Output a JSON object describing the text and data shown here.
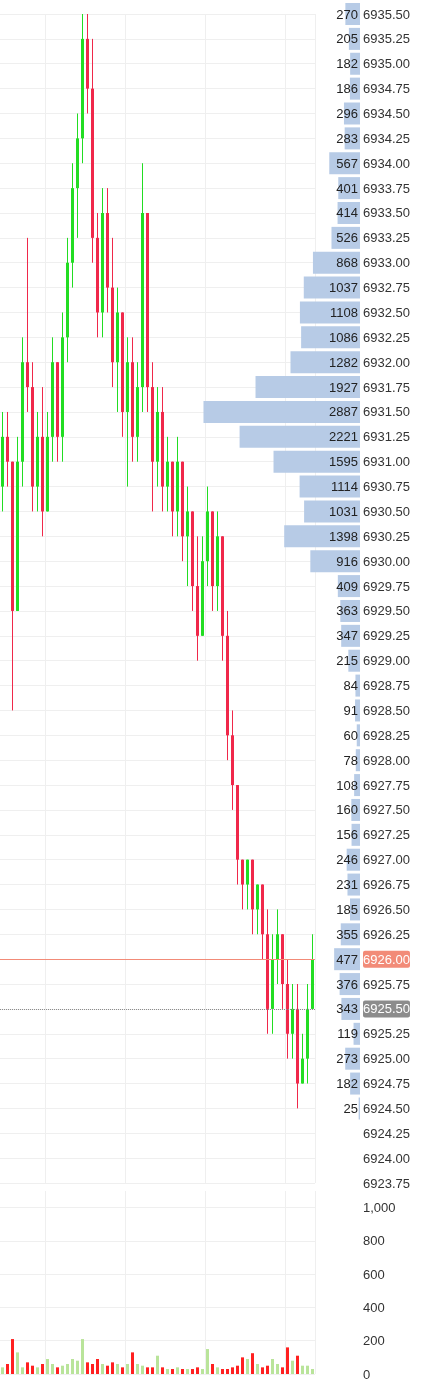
{
  "chart_data": [
    {
      "type": "candlestick",
      "categories": [
        null,
        null,
        null,
        null,
        null,
        null,
        null,
        null,
        null,
        null,
        null,
        null,
        null,
        null,
        null,
        null,
        null,
        null,
        null,
        null,
        null,
        null,
        null,
        null,
        null,
        null,
        null,
        null,
        null,
        null,
        null,
        null,
        null,
        null,
        null,
        null,
        null,
        null,
        null,
        null,
        null,
        null,
        null,
        null,
        null,
        null,
        null,
        null,
        null,
        null,
        null,
        null,
        null,
        null,
        null,
        null,
        null,
        null,
        null,
        null,
        null,
        null,
        null
      ],
      "ohlc": [
        [
          6930.75,
          6931.5,
          6930.5,
          6931.25
        ],
        [
          6931.25,
          6931.5,
          6930.75,
          6931.0
        ],
        [
          6931.0,
          6931.0,
          6928.5,
          6929.5
        ],
        [
          6929.5,
          6931.25,
          6929.5,
          6931.0
        ],
        [
          6931.0,
          6932.25,
          6930.75,
          6932.0
        ],
        [
          6932.0,
          6933.25,
          6931.5,
          6931.75
        ],
        [
          6931.75,
          6932.0,
          6930.5,
          6930.75
        ],
        [
          6930.75,
          6931.5,
          6930.5,
          6931.25
        ],
        [
          6931.25,
          6931.75,
          6930.25,
          6930.5
        ],
        [
          6930.5,
          6931.5,
          6930.5,
          6931.25
        ],
        [
          6931.25,
          6932.25,
          6931.0,
          6932.0
        ],
        [
          6932.0,
          6932.0,
          6931.0,
          6931.25
        ],
        [
          6931.25,
          6932.5,
          6931.0,
          6932.25
        ],
        [
          6932.25,
          6933.25,
          6932.0,
          6933.0
        ],
        [
          6933.0,
          6934.0,
          6932.75,
          6933.75
        ],
        [
          6933.75,
          6934.5,
          6933.25,
          6934.25
        ],
        [
          6934.25,
          6935.5,
          6934.0,
          6935.25
        ],
        [
          6935.25,
          6935.5,
          6934.5,
          6934.75
        ],
        [
          6934.75,
          6935.25,
          6933.0,
          6933.25
        ],
        [
          6933.25,
          6933.5,
          6932.25,
          6932.5
        ],
        [
          6932.5,
          6933.75,
          6932.25,
          6933.5
        ],
        [
          6933.5,
          6933.75,
          6932.5,
          6932.75
        ],
        [
          6932.75,
          6933.25,
          6931.75,
          6932.0
        ],
        [
          6932.0,
          6932.75,
          6931.5,
          6932.5
        ],
        [
          6932.5,
          6932.5,
          6931.25,
          6931.5
        ],
        [
          6931.5,
          6932.25,
          6930.75,
          6932.0
        ],
        [
          6932.0,
          6932.25,
          6931.0,
          6931.25
        ],
        [
          6931.25,
          6932.0,
          6931.0,
          6931.75
        ],
        [
          6931.75,
          6934.0,
          6931.5,
          6933.5
        ],
        [
          6933.5,
          6933.5,
          6931.5,
          6931.75
        ],
        [
          6931.75,
          6932.0,
          6930.5,
          6931.0
        ],
        [
          6931.0,
          6931.75,
          6930.75,
          6931.5
        ],
        [
          6931.5,
          6931.75,
          6930.5,
          6930.75
        ],
        [
          6930.75,
          6931.25,
          6930.5,
          6931.0
        ],
        [
          6931.0,
          6931.0,
          6930.25,
          6930.5
        ],
        [
          6930.5,
          6931.25,
          6930.25,
          6931.0
        ],
        [
          6931.0,
          6931.0,
          6930.0,
          6930.25
        ],
        [
          6930.25,
          6930.75,
          6929.75,
          6930.5
        ],
        [
          6930.5,
          6930.5,
          6929.5,
          6929.75
        ],
        [
          6929.75,
          6930.25,
          6929.0,
          6929.25
        ],
        [
          6929.25,
          6930.25,
          6929.25,
          6930.0
        ],
        [
          6930.0,
          6930.75,
          6929.75,
          6930.5
        ],
        [
          6930.5,
          6930.5,
          6929.5,
          6929.75
        ],
        [
          6929.75,
          6930.5,
          6929.5,
          6930.25
        ],
        [
          6930.25,
          6930.25,
          6929.0,
          6929.25
        ],
        [
          6929.25,
          6929.5,
          6928.0,
          6928.25
        ],
        [
          6928.25,
          6928.5,
          6927.5,
          6927.75
        ],
        [
          6927.75,
          6927.75,
          6926.75,
          6927.0
        ],
        [
          6927.0,
          6927.0,
          6926.5,
          6926.75
        ],
        [
          6926.75,
          6927.0,
          6926.5,
          6927.0
        ],
        [
          6927.0,
          6927.0,
          6926.25,
          6926.5
        ],
        [
          6926.5,
          6926.75,
          6926.25,
          6926.75
        ],
        [
          6926.75,
          6926.75,
          6926.0,
          6926.25
        ],
        [
          6926.25,
          6926.5,
          6925.25,
          6925.5
        ],
        [
          6925.5,
          6926.25,
          6925.25,
          6926.0
        ],
        [
          6926.0,
          6926.5,
          6925.75,
          6926.25
        ],
        [
          6926.25,
          6926.25,
          6925.5,
          6925.75
        ],
        [
          6925.75,
          6926.0,
          6925.0,
          6925.25
        ],
        [
          6925.25,
          6925.75,
          6925.0,
          6925.5
        ],
        [
          6925.5,
          6925.75,
          6924.5,
          6924.75
        ],
        [
          6924.75,
          6925.25,
          6924.75,
          6925.0
        ],
        [
          6925.0,
          6925.75,
          6924.75,
          6925.5
        ],
        [
          6925.5,
          6926.25,
          6925.5,
          6926.0
        ]
      ],
      "colors": [
        "#22dd22",
        "#f0284a",
        "#f0284a",
        "#22dd22",
        "#22dd22",
        "#f0284a",
        "#f0284a",
        "#22dd22",
        "#f0284a",
        "#22dd22",
        "#22dd22",
        "#f0284a",
        "#22dd22",
        "#22dd22",
        "#22dd22",
        "#22dd22",
        "#22dd22",
        "#f0284a",
        "#f0284a",
        "#f0284a",
        "#22dd22",
        "#f0284a",
        "#f0284a",
        "#22dd22",
        "#f0284a",
        "#22dd22",
        "#f0284a",
        "#22dd22",
        "#22dd22",
        "#f0284a",
        "#f0284a",
        "#22dd22",
        "#f0284a",
        "#22dd22",
        "#f0284a",
        "#22dd22",
        "#f0284a",
        "#22dd22",
        "#f0284a",
        "#f0284a",
        "#22dd22",
        "#22dd22",
        "#f0284a",
        "#22dd22",
        "#f0284a",
        "#f0284a",
        "#f0284a",
        "#f0284a",
        "#f0284a",
        "#22dd22",
        "#f0284a",
        "#22dd22",
        "#f0284a",
        "#f0284a",
        "#22dd22",
        "#22dd22",
        "#f0284a",
        "#f0284a",
        "#22dd22",
        "#f0284a",
        "#22dd22",
        "#22dd22",
        "#22dd22"
      ],
      "ylim": [
        6923.75,
        6935.5
      ],
      "yticks": [
        {
          "value": 6923.75,
          "label": "6923.75"
        },
        {
          "value": 6924,
          "label": "6924.00"
        },
        {
          "value": 6924.25,
          "label": "6924.25"
        },
        {
          "value": 6924.5,
          "label": "6924.50"
        },
        {
          "value": 6924.75,
          "label": "6924.75"
        },
        {
          "value": 6925,
          "label": "6925.00"
        },
        {
          "value": 6925.25,
          "label": "6925.25"
        },
        {
          "value": 6925.5,
          "label": "6925.50"
        },
        {
          "value": 6925.75,
          "label": "6925.75"
        },
        {
          "value": 6926,
          "label": "6926.00"
        },
        {
          "value": 6926.25,
          "label": "6926.25"
        },
        {
          "value": 6926.5,
          "label": "6926.50"
        },
        {
          "value": 6926.75,
          "label": "6926.75"
        },
        {
          "value": 6927,
          "label": "6927.00"
        },
        {
          "value": 6927.25,
          "label": "6927.25"
        },
        {
          "value": 6927.5,
          "label": "6927.50"
        },
        {
          "value": 6927.75,
          "label": "6927.75"
        },
        {
          "value": 6928,
          "label": "6928.00"
        },
        {
          "value": 6928.25,
          "label": "6928.25"
        },
        {
          "value": 6928.5,
          "label": "6928.50"
        },
        {
          "value": 6928.75,
          "label": "6928.75"
        },
        {
          "value": 6929,
          "label": "6929.00"
        },
        {
          "value": 6929.25,
          "label": "6929.25"
        },
        {
          "value": 6929.5,
          "label": "6929.50"
        },
        {
          "value": 6929.75,
          "label": "6929.75"
        },
        {
          "value": 6930,
          "label": "6930.00"
        },
        {
          "value": 6930.25,
          "label": "6930.25"
        },
        {
          "value": 6930.5,
          "label": "6930.50"
        },
        {
          "value": 6930.75,
          "label": "6930.75"
        },
        {
          "value": 6931,
          "label": "6931.00"
        },
        {
          "value": 6931.25,
          "label": "6931.25"
        },
        {
          "value": 6931.5,
          "label": "6931.50"
        },
        {
          "value": 6931.75,
          "label": "6931.75"
        },
        {
          "value": 6932,
          "label": "6932.00"
        },
        {
          "value": 6932.25,
          "label": "6932.25"
        },
        {
          "value": 6932.5,
          "label": "6932.50"
        },
        {
          "value": 6932.75,
          "label": "6932.75"
        },
        {
          "value": 6933,
          "label": "6933.00"
        },
        {
          "value": 6933.25,
          "label": "6933.25"
        },
        {
          "value": 6933.5,
          "label": "6933.50"
        },
        {
          "value": 6933.75,
          "label": "6933.75"
        },
        {
          "value": 6934,
          "label": "6934.00"
        },
        {
          "value": 6934.25,
          "label": "6934.25"
        },
        {
          "value": 6934.5,
          "label": "6934.50"
        },
        {
          "value": 6934.75,
          "label": "6934.75"
        },
        {
          "value": 6935,
          "label": "6935.00"
        },
        {
          "value": 6935.25,
          "label": "6935.25"
        },
        {
          "value": 6935.5,
          "label": "6935.50"
        }
      ],
      "ref_lines": [
        {
          "axis": "y",
          "value": 6926,
          "color": "#f28b78",
          "line_style": "solid"
        },
        {
          "axis": "y",
          "value": 6925.5,
          "color": "#8c8c8c",
          "line_style": "dotted"
        }
      ],
      "grid": true,
      "tick_labels": "y"
    },
    {
      "type": "bar",
      "orientation": "horizontal",
      "categories": [
        "6935.50",
        "6935.25",
        "6935.00",
        "6934.75",
        "6934.50",
        "6934.25",
        "6934.00",
        "6933.75",
        "6933.50",
        "6933.25",
        "6933.00",
        "6932.75",
        "6932.50",
        "6932.25",
        "6932.00",
        "6931.75",
        "6931.50",
        "6931.25",
        "6931.00",
        "6930.75",
        "6930.50",
        "6930.25",
        "6930.00",
        "6929.75",
        "6929.50",
        "6929.25",
        "6929.00",
        "6928.75",
        "6928.50",
        "6928.25",
        "6928.00",
        "6927.75",
        "6927.50",
        "6927.25",
        "6927.00",
        "6926.75",
        "6926.50",
        "6926.25",
        "6926.00",
        "6925.75",
        "6925.50",
        "6925.25",
        "6925.00",
        "6924.75",
        "6924.50"
      ],
      "values": [
        270,
        205,
        182,
        186,
        296,
        283,
        567,
        401,
        414,
        526,
        868,
        1037,
        1108,
        1086,
        1282,
        1927,
        2887,
        2221,
        1595,
        1114,
        1031,
        1398,
        916,
        409,
        363,
        347,
        215,
        84,
        91,
        60,
        78,
        108,
        160,
        156,
        246,
        231,
        185,
        355,
        477,
        376,
        343,
        119,
        273,
        182,
        25
      ],
      "color": "#b7cbe6",
      "data_labels": true,
      "tick_labels": false
    },
    {
      "type": "bar",
      "categories": [
        null,
        null,
        null,
        null,
        null,
        null,
        null,
        null,
        null,
        null,
        null,
        null,
        null,
        null,
        null,
        null,
        null,
        null,
        null,
        null,
        null,
        null,
        null,
        null,
        null,
        null,
        null,
        null,
        null,
        null,
        null,
        null,
        null,
        null,
        null,
        null,
        null,
        null,
        null,
        null,
        null,
        null,
        null,
        null,
        null,
        null,
        null,
        null,
        null,
        null,
        null,
        null,
        null,
        null,
        null,
        null,
        null,
        null,
        null,
        null,
        null,
        null,
        null
      ],
      "values": [
        40,
        60,
        210,
        130,
        40,
        70,
        50,
        40,
        60,
        90,
        60,
        40,
        50,
        60,
        90,
        80,
        210,
        70,
        60,
        90,
        60,
        50,
        70,
        60,
        40,
        60,
        130,
        60,
        50,
        40,
        40,
        110,
        40,
        30,
        30,
        40,
        30,
        30,
        30,
        40,
        30,
        150,
        60,
        40,
        30,
        30,
        40,
        50,
        100,
        90,
        125,
        60,
        40,
        50,
        90,
        60,
        40,
        160,
        80,
        110,
        50,
        50,
        30
      ],
      "colors": [
        "#b9e49a",
        "#ff2020",
        "#ff2020",
        "#b9e49a",
        "#b9e49a",
        "#ff2020",
        "#ff2020",
        "#b9e49a",
        "#ff2020",
        "#b9e49a",
        "#b9e49a",
        "#ff2020",
        "#b9e49a",
        "#b9e49a",
        "#b9e49a",
        "#b9e49a",
        "#b9e49a",
        "#ff2020",
        "#ff2020",
        "#ff2020",
        "#b9e49a",
        "#ff2020",
        "#ff2020",
        "#b9e49a",
        "#ff2020",
        "#b9e49a",
        "#ff2020",
        "#b9e49a",
        "#b9e49a",
        "#ff2020",
        "#ff2020",
        "#b9e49a",
        "#ff2020",
        "#b9e49a",
        "#ff2020",
        "#b9e49a",
        "#ff2020",
        "#b9e49a",
        "#ff2020",
        "#ff2020",
        "#b9e49a",
        "#b9e49a",
        "#ff2020",
        "#b9e49a",
        "#ff2020",
        "#ff2020",
        "#ff2020",
        "#ff2020",
        "#ff2020",
        "#b9e49a",
        "#ff2020",
        "#b9e49a",
        "#ff2020",
        "#ff2020",
        "#b9e49a",
        "#b9e49a",
        "#ff2020",
        "#ff2020",
        "#b9e49a",
        "#ff2020",
        "#b9e49a",
        "#b9e49a",
        "#b9e49a"
      ],
      "ylim": [
        0,
        1100
      ],
      "yticks": [
        0,
        200,
        400,
        600,
        800,
        {
          "value": 1000,
          "label": "1,000"
        }
      ],
      "grid": true,
      "tick_labels": "y"
    }
  ]
}
